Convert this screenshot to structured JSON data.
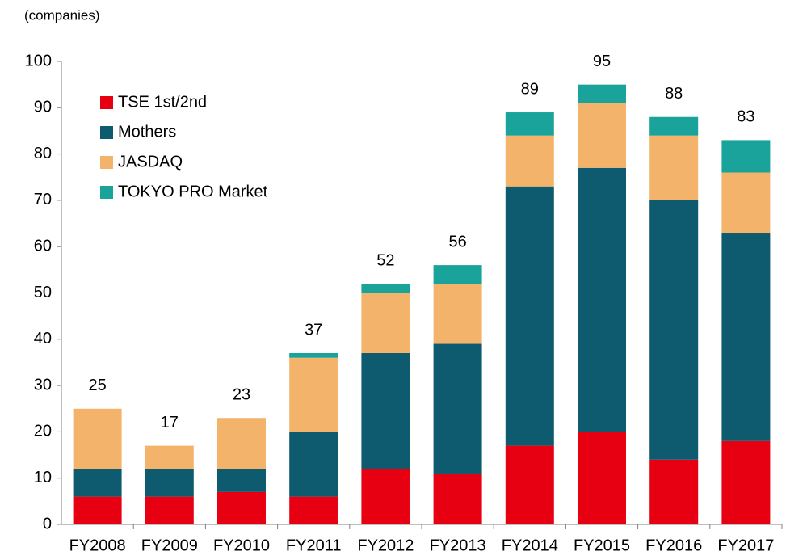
{
  "chart_data": {
    "type": "bar",
    "stacked": true,
    "y_unit_label": "(companies)",
    "categories": [
      "FY2008",
      "FY2009",
      "FY2010",
      "FY2011",
      "FY2012",
      "FY2013",
      "FY2014",
      "FY2015",
      "FY2016",
      "FY2017"
    ],
    "series": [
      {
        "name": "TSE 1st/2nd",
        "color": "#e60012",
        "values": [
          6,
          6,
          7,
          6,
          12,
          11,
          17,
          20,
          14,
          18
        ]
      },
      {
        "name": "Mothers",
        "color": "#0e5a6e",
        "values": [
          6,
          6,
          5,
          14,
          25,
          28,
          56,
          57,
          56,
          45
        ]
      },
      {
        "name": "JASDAQ",
        "color": "#f3b36b",
        "values": [
          13,
          5,
          11,
          16,
          13,
          13,
          11,
          14,
          14,
          13
        ]
      },
      {
        "name": "TOKYO PRO Market",
        "color": "#1aa39a",
        "values": [
          0,
          0,
          0,
          1,
          2,
          4,
          5,
          4,
          4,
          7
        ]
      }
    ],
    "totals": [
      25,
      17,
      23,
      37,
      52,
      56,
      89,
      95,
      88,
      83
    ],
    "ylim": [
      0,
      100
    ],
    "yticks": [
      0,
      10,
      20,
      30,
      40,
      50,
      60,
      70,
      80,
      90,
      100
    ],
    "legend": "upper left"
  }
}
